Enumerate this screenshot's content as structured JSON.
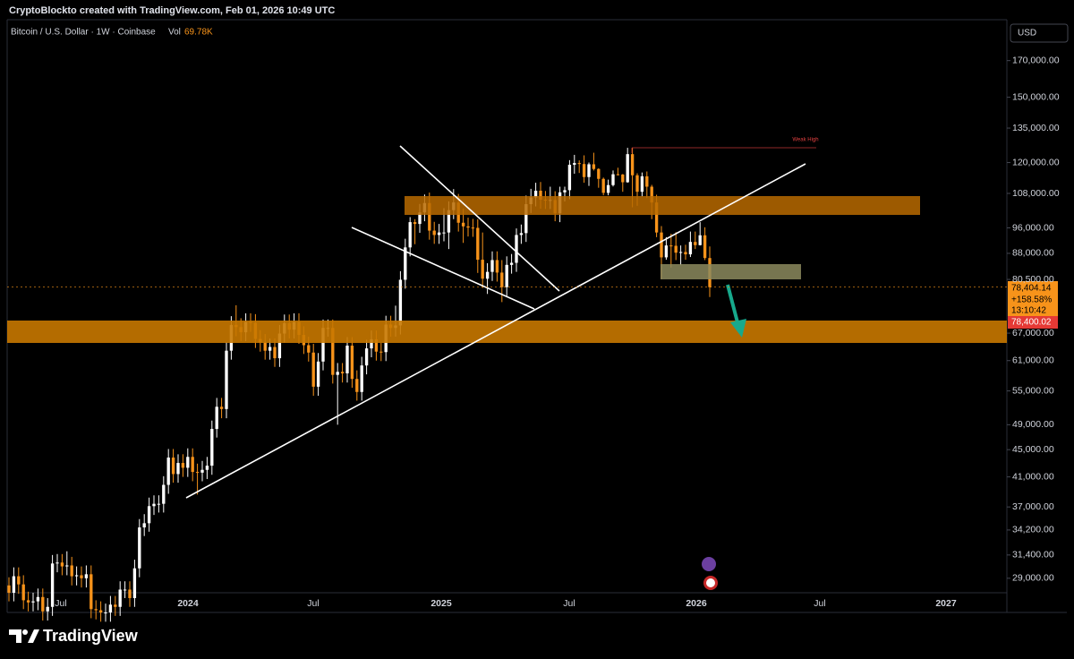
{
  "header": {
    "credit": "CryptoBlockto created with TradingView.com, Feb 01, 2026 10:49 UTC",
    "symbol": "Bitcoin / U.S. Dollar · 1W · Coinbase",
    "volume_label": "Vol",
    "volume": "69.78K",
    "currency": "USD",
    "brand": "TradingView"
  },
  "chart_data": {
    "type": "candlestick",
    "log_scale": true,
    "up_color": "#ffffff",
    "down_color": "#f7931a",
    "ylim": [
      27600,
      195500
    ],
    "yticks": [
      {
        "value": 170000,
        "label": "170,000.00"
      },
      {
        "value": 150000,
        "label": "150,000.00"
      },
      {
        "value": 135000,
        "label": "135,000.00"
      },
      {
        "value": 120000,
        "label": "120,000.00"
      },
      {
        "value": 108000,
        "label": "108,000.00"
      },
      {
        "value": 96000,
        "label": "96,000.00"
      },
      {
        "value": 88000,
        "label": "88,000.00"
      },
      {
        "value": 80500,
        "label": "80,500.00"
      },
      {
        "value": 67000,
        "label": "67,000.00"
      },
      {
        "value": 61000,
        "label": "61,000.00"
      },
      {
        "value": 55000,
        "label": "55,000.00"
      },
      {
        "value": 49000,
        "label": "49,000.00"
      },
      {
        "value": 45000,
        "label": "45,000.00"
      },
      {
        "value": 41000,
        "label": "41,000.00"
      },
      {
        "value": 37000,
        "label": "37,000.00"
      },
      {
        "value": 34200,
        "label": "34,200.00"
      },
      {
        "value": 31400,
        "label": "31,400.00"
      },
      {
        "value": 29000,
        "label": "29,000.00"
      }
    ],
    "xticks": [
      "Jul",
      "2024",
      "Jul",
      "2025",
      "Jul",
      "2026",
      "Jul",
      "2027"
    ],
    "open": [
      28300,
      27600,
      29200,
      28400,
      26900,
      26700,
      26800,
      27200,
      25900,
      26300,
      30500,
      30600,
      30200,
      30300,
      29200,
      29300,
      29000,
      29400,
      26100,
      26000,
      25800,
      25800,
      26500,
      26300,
      27900,
      27900,
      27100,
      30000,
      34500,
      35000,
      37100,
      37400,
      37400,
      39900,
      43800,
      41400,
      43000,
      42300,
      43900,
      41700,
      41600,
      42000,
      42600,
      48300,
      52100,
      51700,
      63100,
      68900,
      68400,
      67200,
      69600,
      69400,
      65700,
      64900,
      63100,
      63900,
      61500,
      66900,
      69300,
      67800,
      69600,
      66600,
      64300,
      62700,
      55800,
      60800,
      68200,
      68200,
      58100,
      58700,
      58400,
      64200,
      57300,
      54800,
      60000,
      63600,
      65600,
      62900,
      62800,
      69000,
      68200,
      68800,
      80400,
      89800,
      97900,
      97300,
      101200,
      104500,
      95100,
      93700,
      94500,
      94500,
      102000,
      104700,
      97700,
      96500,
      96100,
      96000,
      86100,
      80700,
      82600,
      86000,
      82400,
      78400,
      84600,
      85200,
      93700,
      94300,
      104100,
      106500,
      109000,
      105700,
      105600,
      105600,
      100900,
      108400,
      109200,
      119100,
      119800,
      119400,
      114200,
      119300,
      117400,
      113500,
      108200,
      111100,
      115300,
      115200,
      112200,
      123500,
      114900,
      108600,
      114500,
      110500,
      104700,
      94500,
      86800,
      90400,
      90300,
      88200,
      88400,
      87700,
      91500,
      90500,
      93600,
      86600
    ],
    "high": [
      29100,
      30100,
      30100,
      29300,
      27700,
      27600,
      28000,
      28000,
      27100,
      31400,
      31500,
      31500,
      31800,
      31200,
      30200,
      30200,
      30300,
      30300,
      26900,
      26800,
      26600,
      27300,
      27300,
      28700,
      28700,
      28700,
      30900,
      35500,
      36100,
      38200,
      38500,
      38500,
      41100,
      45100,
      45100,
      44300,
      44300,
      45200,
      45200,
      42900,
      43300,
      43900,
      49700,
      53700,
      53700,
      65000,
      71000,
      73700,
      70500,
      71700,
      71700,
      71500,
      67700,
      66800,
      65800,
      65800,
      68900,
      71400,
      71400,
      71700,
      71700,
      68600,
      66200,
      64600,
      62600,
      70200,
      70200,
      70200,
      60500,
      60500,
      66100,
      66100,
      59000,
      61800,
      65500,
      67600,
      67600,
      64800,
      71100,
      71100,
      73600,
      82800,
      92500,
      99600,
      98900,
      104200,
      107600,
      108300,
      98000,
      97300,
      102700,
      105100,
      109600,
      107800,
      102500,
      99400,
      99000,
      98900,
      94500,
      85100,
      88600,
      88600,
      86000,
      87100,
      87800,
      95800,
      97100,
      107200,
      109700,
      112000,
      112300,
      108900,
      110500,
      108800,
      110500,
      110500,
      121000,
      123200,
      120900,
      123000,
      120000,
      124100,
      117700,
      114000,
      113200,
      116800,
      117900,
      115400,
      126200,
      126200,
      115700,
      116000,
      116400,
      111200,
      107500,
      96600,
      93000,
      94100,
      94600,
      90400,
      90600,
      94800,
      94800,
      97900,
      96200,
      90100
    ],
    "low": [
      26800,
      26800,
      27500,
      26100,
      25900,
      25900,
      26000,
      25100,
      25100,
      25500,
      29600,
      29300,
      29300,
      28300,
      28300,
      28100,
      28100,
      25300,
      25200,
      25000,
      25000,
      25000,
      25500,
      25500,
      27100,
      26300,
      26300,
      29100,
      33500,
      34000,
      36000,
      36300,
      36300,
      38700,
      40200,
      40200,
      41000,
      41000,
      40400,
      38600,
      40400,
      40700,
      41300,
      46900,
      50100,
      50100,
      61200,
      66300,
      65200,
      65200,
      67300,
      63700,
      62900,
      61200,
      61200,
      59700,
      59700,
      64900,
      65800,
      65800,
      64600,
      62400,
      60800,
      54100,
      54100,
      59000,
      66200,
      56400,
      49000,
      56600,
      56600,
      55600,
      53200,
      53200,
      58200,
      61700,
      61000,
      60900,
      60900,
      66200,
      66200,
      66700,
      78000,
      87100,
      90800,
      94400,
      98200,
      92200,
      90900,
      90900,
      91700,
      89300,
      98900,
      94800,
      91200,
      93200,
      93100,
      82300,
      78200,
      76600,
      80100,
      79900,
      74500,
      76000,
      82100,
      82600,
      90900,
      91500,
      101000,
      103300,
      102500,
      102400,
      102400,
      98200,
      97900,
      105100,
      105900,
      115500,
      115800,
      112000,
      110800,
      116800,
      110100,
      107300,
      107300,
      110600,
      114800,
      108600,
      112000,
      103000,
      103500,
      106900,
      106300,
      98900,
      93000,
      80600,
      86100,
      83800,
      86000,
      84500,
      86100,
      86900,
      89300,
      90400,
      86000,
      75800
    ],
    "close": [
      27600,
      29200,
      28400,
      26900,
      26700,
      26800,
      27200,
      25900,
      26300,
      30500,
      30600,
      30200,
      30300,
      29200,
      29300,
      29000,
      29400,
      26100,
      26000,
      25800,
      25800,
      26500,
      26300,
      27900,
      27900,
      27100,
      30000,
      34500,
      35000,
      37100,
      37400,
      37400,
      39900,
      43800,
      41400,
      43000,
      42300,
      43900,
      41700,
      41600,
      42000,
      42600,
      48300,
      52100,
      51700,
      63100,
      68900,
      68400,
      67200,
      69600,
      69400,
      65700,
      64900,
      63100,
      63900,
      61500,
      66900,
      69300,
      67800,
      69600,
      66600,
      64300,
      62700,
      55800,
      60800,
      68200,
      68200,
      58100,
      58700,
      58400,
      64200,
      57300,
      54800,
      60000,
      63600,
      65600,
      62900,
      62800,
      69000,
      68200,
      68800,
      80400,
      89800,
      97900,
      97300,
      101200,
      104500,
      95100,
      93700,
      94500,
      94500,
      102000,
      104700,
      97700,
      96500,
      96100,
      96000,
      86100,
      80700,
      82600,
      86000,
      82400,
      78400,
      84600,
      85200,
      93700,
      94300,
      104100,
      106500,
      109000,
      105700,
      105600,
      105600,
      100900,
      108400,
      109200,
      119100,
      119800,
      119400,
      114200,
      119300,
      117400,
      113500,
      108200,
      111100,
      115300,
      115200,
      112200,
      123500,
      114900,
      108600,
      114500,
      110500,
      104700,
      94500,
      86800,
      90400,
      90300,
      88200,
      88400,
      87700,
      91500,
      90500,
      93600,
      86600,
      78400
    ],
    "last_price": {
      "value": 78404.14,
      "label": "78,404.14"
    },
    "change": {
      "value": 158.58,
      "label": "+158.58%"
    },
    "countdown": "13:10:42",
    "alert_price": {
      "value": 78400.02,
      "label": "78,400.02"
    },
    "annotation": "Weak High"
  }
}
